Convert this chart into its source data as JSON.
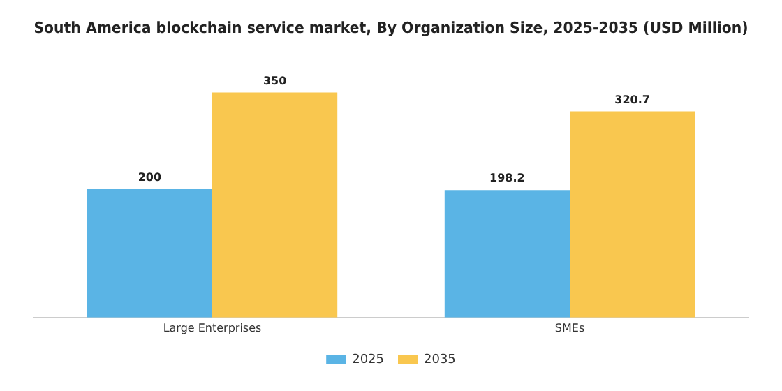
{
  "chart_data": {
    "type": "bar",
    "title": "South America blockchain service market, By Organization Size, 2025-2035 (USD Million)",
    "categories": [
      "Large Enterprises",
      "SMEs"
    ],
    "series": [
      {
        "name": "2025",
        "color": "#5ab4e5",
        "values": [
          200,
          198.2
        ]
      },
      {
        "name": "2035",
        "color": "#f9c74f",
        "values": [
          350,
          320.7
        ]
      }
    ],
    "data_labels": true,
    "legend": "bottom",
    "grid": false
  }
}
